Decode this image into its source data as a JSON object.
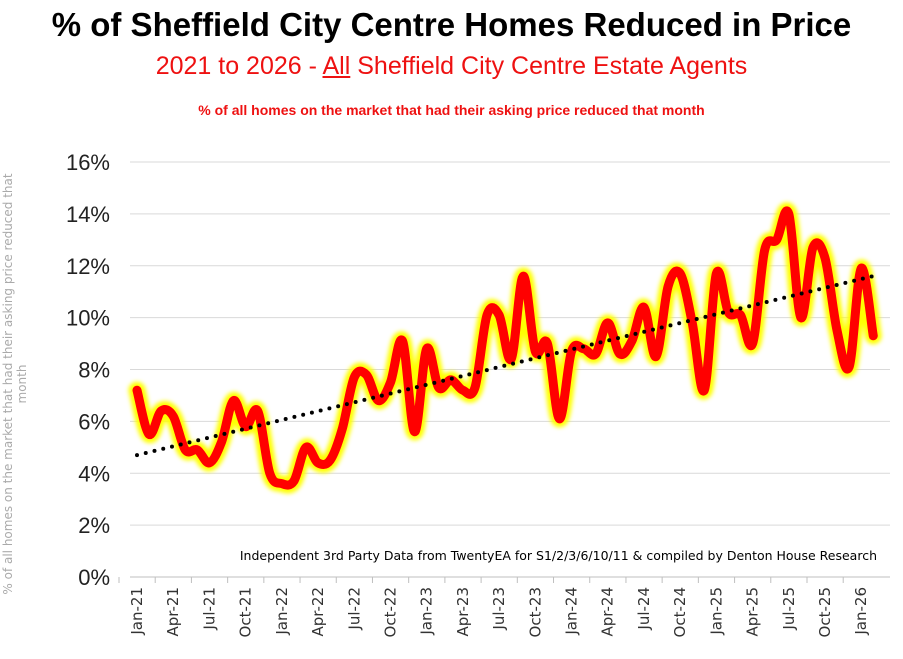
{
  "title": "% of Sheffield City Centre Homes Reduced in Price",
  "subtitle_pre": "2021 to 2026 - ",
  "subtitle_u": "All",
  "subtitle_post": " Sheffield City Centre Estate Agents",
  "note": "% of all homes on the market that had their asking price reduced that month",
  "source": "Independent 3rd Party Data from TwentyEA for S1/2/3/6/10/11 & compiled by Denton House Research",
  "colors": {
    "line": "#ff0000",
    "glow": "#ffff00",
    "trend": "#000000",
    "grid": "#d9d9d9"
  },
  "chart_data": {
    "type": "line",
    "title": "% of Sheffield City Centre Homes Reduced in Price",
    "ylabel": "% of all homes on the market that had their asking price reduced that month",
    "xlabel": "",
    "ylim": [
      0,
      16
    ],
    "yticks": [
      "0%",
      "2%",
      "4%",
      "6%",
      "8%",
      "10%",
      "12%",
      "14%",
      "16%"
    ],
    "grid": true,
    "x_tick_labels": [
      "Jan-21",
      "Apr-21",
      "Jul-21",
      "Oct-21",
      "Jan-22",
      "Apr-22",
      "Jul-22",
      "Oct-22",
      "Jan-23",
      "Apr-23",
      "Jul-23",
      "Oct-23",
      "Jan-24",
      "Apr-24",
      "Jul-24",
      "Oct-24",
      "Jan-25",
      "Apr-25",
      "Jul-25",
      "Oct-25",
      "Jan-26"
    ],
    "x": [
      "Jan-21",
      "Feb-21",
      "Mar-21",
      "Apr-21",
      "May-21",
      "Jun-21",
      "Jul-21",
      "Aug-21",
      "Sep-21",
      "Oct-21",
      "Nov-21",
      "Dec-21",
      "Jan-22",
      "Feb-22",
      "Mar-22",
      "Apr-22",
      "May-22",
      "Jun-22",
      "Jul-22",
      "Aug-22",
      "Sep-22",
      "Oct-22",
      "Nov-22",
      "Dec-22",
      "Jan-23",
      "Feb-23",
      "Mar-23",
      "Apr-23",
      "May-23",
      "Jun-23",
      "Jul-23",
      "Aug-23",
      "Sep-23",
      "Oct-23",
      "Nov-23",
      "Dec-23",
      "Jan-24",
      "Feb-24",
      "Mar-24",
      "Apr-24",
      "May-24",
      "Jun-24",
      "Jul-24",
      "Aug-24",
      "Sep-24",
      "Oct-24",
      "Nov-24",
      "Dec-24",
      "Jan-25",
      "Feb-25",
      "Mar-25",
      "Apr-25",
      "May-25",
      "Jun-25",
      "Jul-25",
      "Aug-25",
      "Sep-25",
      "Oct-25",
      "Nov-25",
      "Dec-25",
      "Jan-26",
      "Feb-26"
    ],
    "series": [
      {
        "values": [
          7.2,
          5.5,
          6.4,
          6.2,
          4.9,
          4.9,
          4.4,
          5.2,
          6.8,
          5.8,
          6.4,
          4.0,
          3.6,
          3.7,
          5.0,
          4.4,
          4.5,
          5.7,
          7.7,
          7.8,
          6.8,
          7.5,
          9.1,
          5.6,
          8.8,
          7.3,
          7.6,
          7.2,
          7.3,
          10.1,
          10.1,
          8.4,
          11.6,
          8.7,
          9.0,
          6.1,
          8.7,
          8.8,
          8.6,
          9.8,
          8.6,
          9.1,
          10.4,
          8.5,
          11.2,
          11.7,
          9.8,
          7.2,
          11.7,
          10.2,
          10.1,
          9.0,
          12.6,
          13.0,
          14.0,
          10.0,
          12.7,
          12.3,
          9.5,
          8.1,
          11.9,
          9.3
        ]
      }
    ],
    "trendline": {
      "type": "linear",
      "start": 4.7,
      "end": 11.6
    }
  }
}
